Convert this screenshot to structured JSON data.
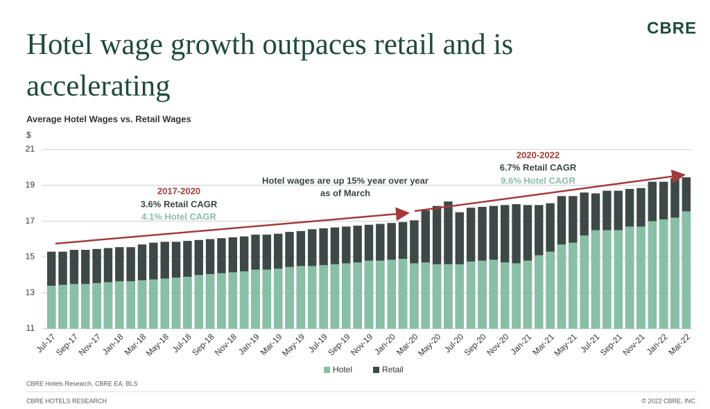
{
  "slide": {
    "title_lines": [
      "Hotel wage growth outpaces retail and is",
      "accelerating"
    ],
    "logo": "CBRE",
    "source": "CBRE Hotels Research, CBRE EA, BLS",
    "footer_left": "CBRE HOTELS RESEARCH",
    "footer_right": "© 2022 CBRE, INC."
  },
  "chart_data": {
    "type": "bar",
    "title": "Average Hotel Wages vs. Retail Wages",
    "y_label": "$",
    "categories": [
      "Jul-17",
      null,
      "Sep-17",
      null,
      "Nov-17",
      null,
      "Jan-18",
      null,
      "Mar-18",
      null,
      "May-18",
      null,
      "Jul-18",
      null,
      "Sep-18",
      null,
      "Nov-18",
      null,
      "Jan-19",
      null,
      "Mar-19",
      null,
      "May-19",
      null,
      "Jul-19",
      null,
      "Sep-19",
      null,
      "Nov-19",
      null,
      "Jan-20",
      null,
      "Mar-20",
      null,
      "May-20",
      null,
      "Jul-20",
      null,
      "Sep-20",
      null,
      "Nov-20",
      null,
      "Jan-21",
      null,
      "Mar-21",
      null,
      "May-21",
      null,
      "Jul-21",
      null,
      "Sep-21",
      null,
      "Nov-21",
      null,
      "Jan-22",
      null,
      "Mar-22"
    ],
    "series": [
      {
        "name": "Hotel",
        "color": "#88c0a6",
        "values": [
          13.4,
          13.45,
          13.5,
          13.5,
          13.55,
          13.6,
          13.65,
          13.65,
          13.7,
          13.75,
          13.8,
          13.85,
          13.9,
          14.0,
          14.05,
          14.1,
          14.15,
          14.2,
          14.3,
          14.3,
          14.35,
          14.45,
          14.5,
          14.5,
          14.55,
          14.6,
          14.65,
          14.7,
          14.8,
          14.8,
          14.85,
          14.9,
          14.65,
          14.7,
          14.6,
          14.6,
          14.6,
          14.75,
          14.8,
          14.85,
          14.7,
          14.65,
          14.8,
          15.1,
          15.3,
          15.7,
          15.8,
          16.2,
          16.5,
          16.5,
          16.5,
          16.7,
          16.7,
          17.0,
          17.1,
          17.2,
          17.55
        ]
      },
      {
        "name": "Retail",
        "color": "#3d4946",
        "values": [
          15.3,
          15.3,
          15.4,
          15.4,
          15.45,
          15.5,
          15.55,
          15.55,
          15.7,
          15.8,
          15.85,
          15.85,
          15.9,
          15.95,
          16.0,
          16.05,
          16.1,
          16.15,
          16.25,
          16.25,
          16.3,
          16.4,
          16.45,
          16.55,
          16.6,
          16.65,
          16.7,
          16.75,
          16.8,
          16.85,
          16.9,
          16.95,
          17.05,
          17.6,
          17.85,
          18.1,
          17.5,
          17.75,
          17.8,
          17.85,
          17.9,
          17.95,
          17.9,
          17.9,
          18.0,
          18.4,
          18.4,
          18.6,
          18.55,
          18.7,
          18.7,
          18.8,
          18.85,
          19.2,
          19.2,
          19.4,
          19.45
        ]
      }
    ],
    "ylim": [
      11,
      21
    ],
    "yticks": [
      11,
      13,
      15,
      17,
      19,
      21
    ],
    "grid": true,
    "annotations": [
      {
        "lines": [
          "2017-2020",
          "3.6% Retail CAGR",
          "4.1% Hotel CAGR"
        ]
      },
      {
        "lines": [
          "Hotel wages are up 15% year over year",
          "as of March"
        ]
      },
      {
        "lines": [
          "2020-2022",
          "6.7% Retail CAGR",
          "9.6% Hotel CAGR"
        ]
      }
    ]
  }
}
